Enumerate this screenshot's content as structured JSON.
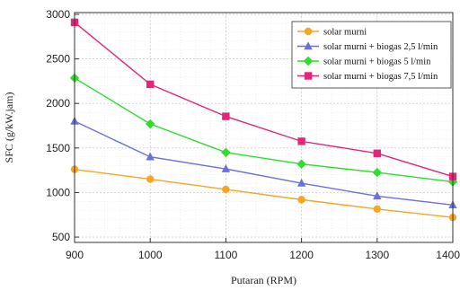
{
  "chart_data": {
    "type": "line",
    "xlabel": "Putaran (RPM)",
    "ylabel": "SFC (g/kW.jam)",
    "x": [
      900,
      1000,
      1100,
      1200,
      1300,
      1400
    ],
    "xlim": [
      900,
      1400
    ],
    "ylim": [
      440,
      3020
    ],
    "xticks": [
      900,
      1000,
      1100,
      1200,
      1300,
      1400
    ],
    "yticks": [
      500,
      1000,
      1500,
      2000,
      2500,
      3000
    ],
    "grid": true,
    "legend_position": "top-right",
    "series": [
      {
        "name": "solar murni",
        "color": "#f5a623",
        "marker": "circle",
        "values": [
          1260,
          1150,
          1035,
          920,
          815,
          720
        ]
      },
      {
        "name": "solar murni + biogas 2,5 l/min",
        "color": "#6b6fe0",
        "marker": "triangle",
        "values": [
          1800,
          1400,
          1265,
          1105,
          960,
          860
        ]
      },
      {
        "name": "solar murni + biogas 5 l/min",
        "color": "#2bdf2b",
        "marker": "diamond",
        "values": [
          2285,
          1770,
          1450,
          1320,
          1225,
          1120
        ]
      },
      {
        "name": "solar murni + biogas 7,5 l/min",
        "color": "#e8237a",
        "marker": "square",
        "values": [
          2910,
          2215,
          1855,
          1575,
          1440,
          1180
        ]
      }
    ]
  }
}
